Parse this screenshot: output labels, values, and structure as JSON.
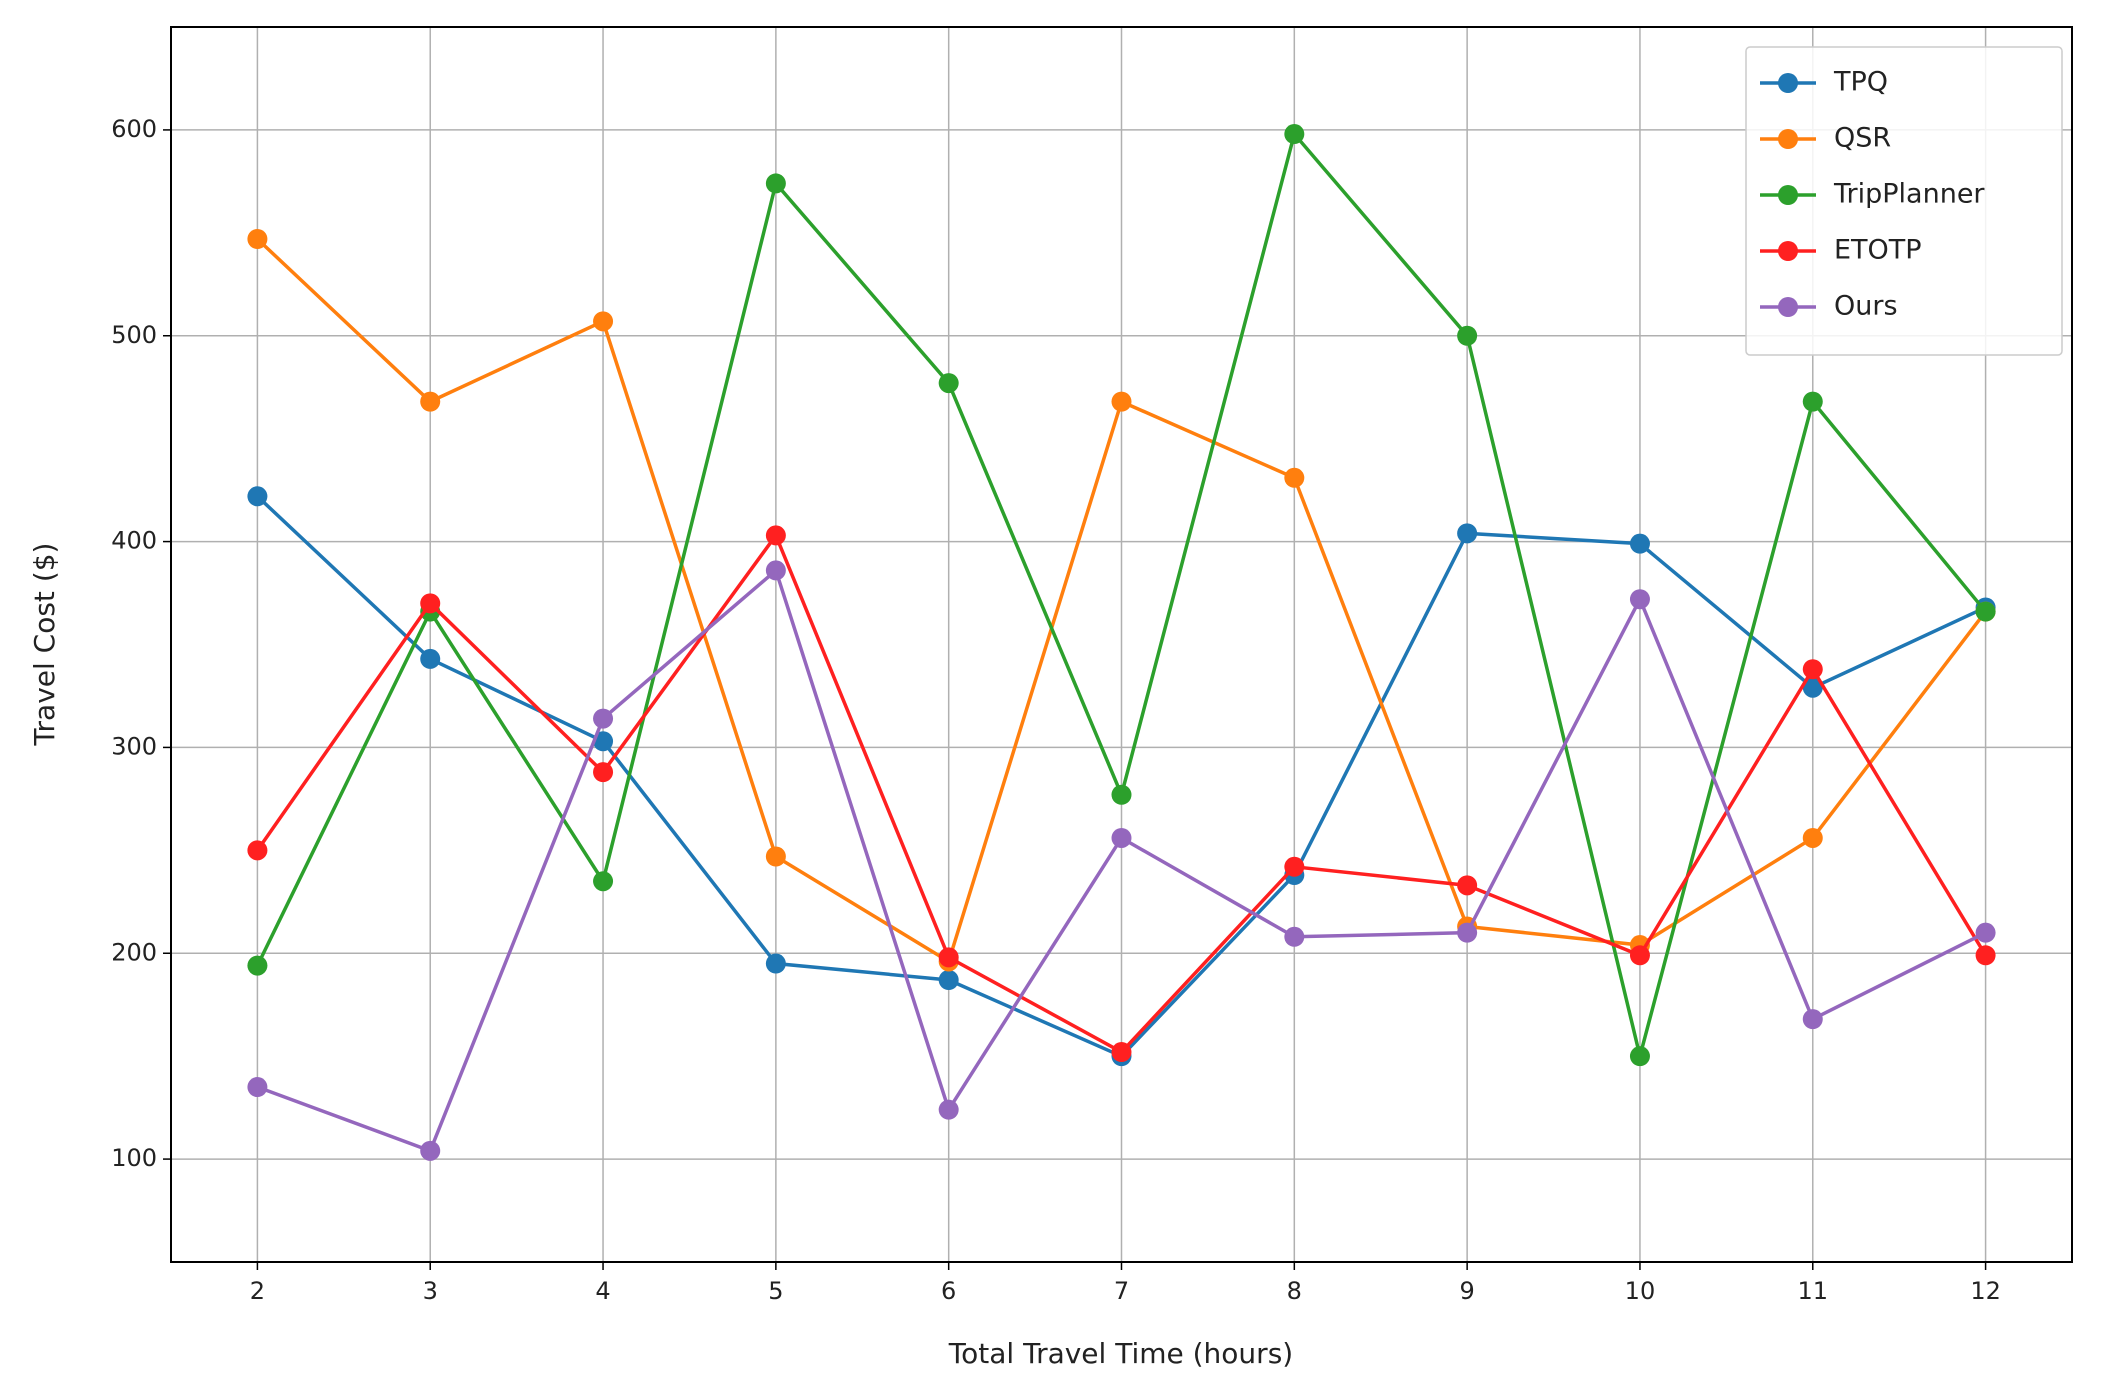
{
  "chart_data": {
    "type": "line",
    "x_label": "Total Travel Time (hours)",
    "y_label": "Travel Cost ($)",
    "x": [
      2,
      3,
      4,
      5,
      6,
      7,
      8,
      9,
      10,
      11,
      12
    ],
    "xlim": [
      1.5,
      12.5
    ],
    "xticks": [
      2,
      3,
      4,
      5,
      6,
      7,
      8,
      9,
      10,
      11,
      12
    ],
    "ylim": [
      50,
      650
    ],
    "yticks": [
      100,
      200,
      300,
      400,
      500,
      600
    ],
    "grid": true,
    "legend": "upper right",
    "series": [
      {
        "name": "TPQ",
        "color": "#1f77b4",
        "values": [
          422,
          343,
          303,
          195,
          187,
          150,
          238,
          404,
          399,
          329,
          368
        ]
      },
      {
        "name": "QSR",
        "color": "#ff7f0e",
        "values": [
          547,
          468,
          507,
          247,
          196,
          468,
          431,
          213,
          204,
          256,
          366
        ]
      },
      {
        "name": "TripPlanner",
        "color": "#2ca02c",
        "values": [
          194,
          366,
          235,
          574,
          477,
          277,
          598,
          500,
          150,
          468,
          366
        ]
      },
      {
        "name": "ETOTP",
        "color": "#ff2020",
        "values": [
          250,
          370,
          288,
          403,
          198,
          152,
          242,
          233,
          199,
          338,
          199
        ]
      },
      {
        "name": "Ours",
        "color": "#9467bd",
        "values": [
          135,
          104,
          314,
          386,
          124,
          256,
          208,
          210,
          372,
          168,
          210
        ]
      }
    ]
  }
}
